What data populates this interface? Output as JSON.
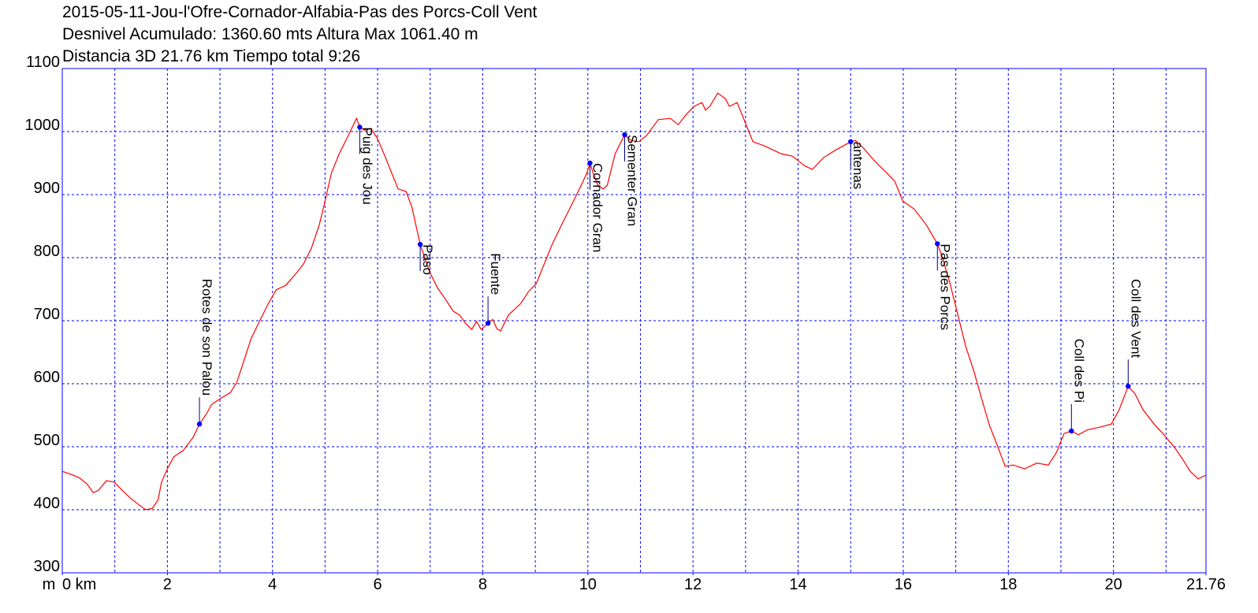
{
  "chart_data": {
    "type": "line",
    "title_lines": [
      "2015-05-11-Jou-l'Ofre-Cornador-Alfabia-Pas des Porcs-Coll Vent",
      "Desnivel Acumulado: 1360.60 mts  Altura Max 1061.40 m",
      "Distancia 3D 21.76 km  Tiempo total 9:26"
    ],
    "y_label": "m",
    "xlim": [
      0,
      21.76
    ],
    "ylim": [
      300,
      1100
    ],
    "xticks": [
      {
        "value": 0,
        "label": "0 km"
      },
      2,
      4,
      6,
      8,
      10,
      12,
      14,
      16,
      18,
      20,
      21.76
    ],
    "xgrid": [
      1,
      2,
      3,
      4,
      5,
      6,
      7,
      8,
      9,
      10,
      11,
      12,
      13,
      14,
      15,
      16,
      17,
      18,
      19,
      20,
      21
    ],
    "yticks": [
      300,
      400,
      500,
      600,
      700,
      800,
      900,
      1000,
      1100
    ],
    "grid": true,
    "grid_color": "#0000ff",
    "x": [
      0,
      0.17,
      0.32,
      0.47,
      0.59,
      0.69,
      0.84,
      0.99,
      1.14,
      1.29,
      1.44,
      1.59,
      1.71,
      1.82,
      1.89,
      2.0,
      2.12,
      2.3,
      2.49,
      2.61,
      2.75,
      2.84,
      3.02,
      3.2,
      3.32,
      3.47,
      3.59,
      3.77,
      3.92,
      4.07,
      4.25,
      4.44,
      4.59,
      4.74,
      4.89,
      5.0,
      5.12,
      5.27,
      5.42,
      5.54,
      5.6,
      5.66,
      5.75,
      5.87,
      5.99,
      6.09,
      6.24,
      6.39,
      6.54,
      6.65,
      6.81,
      6.99,
      7.14,
      7.29,
      7.44,
      7.56,
      7.67,
      7.79,
      7.88,
      7.97,
      8.1,
      8.19,
      8.27,
      8.34,
      8.49,
      8.72,
      8.87,
      9.02,
      9.17,
      9.32,
      9.5,
      9.65,
      9.84,
      9.98,
      10.04,
      10.1,
      10.19,
      10.29,
      10.37,
      10.52,
      10.7,
      10.82,
      10.97,
      11.12,
      11.34,
      11.57,
      11.72,
      11.87,
      12.02,
      12.17,
      12.24,
      12.32,
      12.47,
      12.62,
      12.69,
      12.84,
      12.99,
      13.14,
      13.37,
      13.52,
      13.67,
      13.89,
      14.12,
      14.27,
      14.49,
      14.72,
      14.94,
      15.09,
      15.24,
      15.47,
      15.69,
      15.84,
      15.99,
      16.21,
      16.44,
      16.65,
      16.74,
      16.89,
      17.04,
      17.19,
      17.34,
      17.49,
      17.64,
      17.79,
      17.94,
      18.09,
      18.31,
      18.54,
      18.76,
      18.91,
      19.06,
      19.2,
      19.33,
      19.51,
      19.74,
      19.96,
      20.11,
      20.28,
      20.41,
      20.56,
      20.79,
      20.94,
      21.16,
      21.31,
      21.46,
      21.61,
      21.76
    ],
    "series": [
      {
        "color": "#ff0000",
        "values": [
          461,
          456,
          451,
          441,
          427,
          431,
          446,
          444,
          431,
          419,
          409,
          400,
          402,
          415,
          444,
          465,
          484,
          494,
          515,
          536,
          553,
          567,
          577,
          586,
          602,
          640,
          671,
          702,
          727,
          749,
          756,
          774,
          790,
          815,
          852,
          890,
          934,
          965,
          990,
          1011,
          1021,
          1007,
          1002,
          1005,
          990,
          971,
          940,
          909,
          905,
          881,
          821,
          777,
          752,
          734,
          715,
          709,
          696,
          686,
          699,
          686,
          696,
          702,
          687,
          684,
          709,
          727,
          746,
          759,
          790,
          821,
          852,
          877,
          909,
          934,
          950,
          934,
          915,
          909,
          915,
          965,
          995,
          986,
          984,
          994,
          1019,
          1021,
          1011,
          1027,
          1040,
          1046,
          1034,
          1040,
          1061,
          1052,
          1040,
          1046,
          1015,
          984,
          977,
          971,
          965,
          961,
          946,
          940,
          959,
          971,
          981,
          986,
          974,
          952,
          934,
          921,
          890,
          877,
          852,
          822,
          802,
          759,
          709,
          659,
          621,
          577,
          534,
          502,
          469,
          471,
          465,
          474,
          471,
          490,
          521,
          525,
          519,
          527,
          531,
          536,
          559,
          596,
          584,
          559,
          534,
          521,
          499,
          481,
          461,
          449,
          455
        ]
      }
    ],
    "annotations": [
      {
        "label": "Rotes de son Palou",
        "x": 2.61,
        "y": 536
      },
      {
        "label": "Puig des Jou",
        "x": 5.66,
        "y": 1007
      },
      {
        "label": "Paso",
        "x": 6.81,
        "y": 821
      },
      {
        "label": "Fuente",
        "x": 8.1,
        "y": 696
      },
      {
        "label": "Cornador Gran",
        "x": 10.04,
        "y": 950
      },
      {
        "label": "Sementer Gran",
        "x": 10.7,
        "y": 995
      },
      {
        "label": "antenas",
        "x": 15.0,
        "y": 984
      },
      {
        "label": "Pas des Porcs",
        "x": 16.65,
        "y": 822
      },
      {
        "label": "Coll des Pi",
        "x": 19.2,
        "y": 525
      },
      {
        "label": "Coll des Vent",
        "x": 20.28,
        "y": 596
      }
    ],
    "marker_color": "#0000ff"
  }
}
